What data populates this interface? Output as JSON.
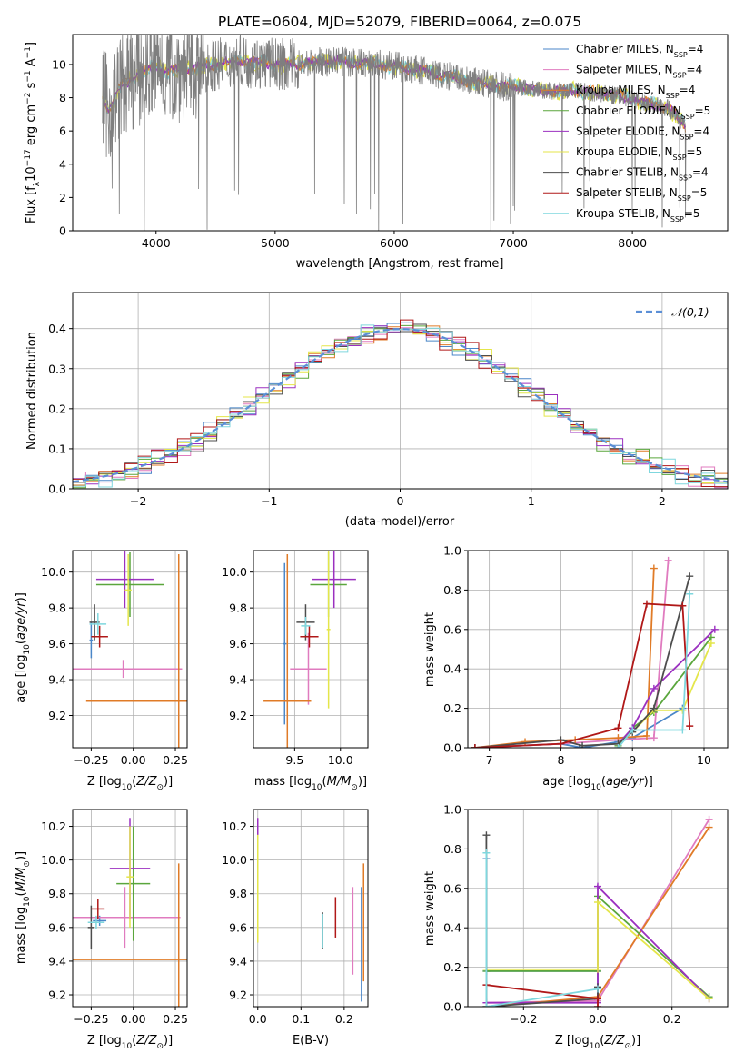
{
  "figure_title": "PLATE=0604, MJD=52079, FIBERID=0064, z=0.075",
  "legend": [
    {
      "name": "Chabrier MILES",
      "nssp": "4",
      "color": "#4a86c8"
    },
    {
      "name": "Salpeter MILES",
      "nssp": "4",
      "color": "#e07bbf"
    },
    {
      "name": "Kroupa MILES",
      "nssp": "4",
      "color": "#e07b27"
    },
    {
      "name": "Chabrier ELODIE",
      "nssp": "5",
      "color": "#5aa63c"
    },
    {
      "name": "Salpeter ELODIE",
      "nssp": "4",
      "color": "#9b30c0"
    },
    {
      "name": "Kroupa ELODIE",
      "nssp": "5",
      "color": "#e4e64a"
    },
    {
      "name": "Chabrier STELIB",
      "nssp": "4",
      "color": "#4d4d4d"
    },
    {
      "name": "Salpeter STELIB",
      "nssp": "5",
      "color": "#b01818"
    },
    {
      "name": "Kroupa STELIB",
      "nssp": "5",
      "color": "#7fd7de"
    }
  ],
  "chart_data": [
    {
      "id": "spectrum",
      "type": "line",
      "title": "PLATE=0604, MJD=52079, FIBERID=0064, z=0.075",
      "xlabel": "wavelength [Angstrom, rest frame]",
      "ylabel": "Flux [f_λ 10^-17 erg cm^-2 s^-1 A^-1]",
      "xlim": [
        3300,
        8800
      ],
      "ylim": [
        0,
        11.8
      ],
      "xticks": [
        4000,
        5000,
        6000,
        7000,
        8000
      ],
      "yticks": [
        0,
        2,
        4,
        6,
        8,
        10
      ],
      "grid": false,
      "legend_position": "top-right",
      "continuum_x": [
        3550,
        3600,
        3650,
        3700,
        3800,
        3900,
        4000,
        4100,
        4200,
        4300,
        4500,
        4700,
        4900,
        5100,
        5300,
        5500,
        5700,
        5900,
        6100,
        6300,
        6500,
        6700,
        6900,
        7100,
        7300,
        7500,
        7700,
        7900,
        8100,
        8300,
        8450
      ],
      "continuum_y": [
        8.2,
        7.2,
        7.9,
        8.6,
        9.2,
        9.6,
        9.9,
        9.6,
        9.7,
        9.8,
        10.0,
        10.2,
        10.1,
        10.0,
        10.1,
        10.2,
        10.1,
        10.0,
        9.8,
        9.5,
        9.2,
        8.9,
        8.7,
        8.6,
        8.4,
        8.4,
        8.3,
        8.1,
        7.7,
        7.4,
        6.3
      ]
    },
    {
      "id": "residuals",
      "type": "area",
      "xlabel": "(data-model)/error",
      "ylabel": "Normed distribution",
      "xlim": [
        -2.5,
        2.5
      ],
      "ylim": [
        0,
        0.49
      ],
      "xticks": [
        -2,
        -1,
        0,
        1,
        2
      ],
      "yticks": [
        0.0,
        0.1,
        0.2,
        0.3,
        0.4
      ],
      "grid": true,
      "legend_position": "top-right",
      "reference_curve": "𝒩(0,1)",
      "reference_color": "#5b8fd6",
      "bin_width": 0.1
    },
    {
      "id": "Z_age",
      "type": "scatter",
      "xlabel": "Z [log10(Z/Z⊙)]",
      "ylabel": "age  [log10(age/yr)]",
      "xlim": [
        -0.36,
        0.32
      ],
      "ylim": [
        9.02,
        10.12
      ],
      "xticks": [
        -0.25,
        0.0,
        0.25
      ],
      "yticks": [
        9.2,
        9.4,
        9.6,
        9.8,
        10.0
      ],
      "grid": true,
      "points": [
        {
          "x": -0.25,
          "y": 9.62,
          "xerr": 0.01,
          "yerr": 0.1,
          "color": "#4a86c8"
        },
        {
          "x": -0.06,
          "y": 9.46,
          "xerr": 0.35,
          "yerr": 0.05,
          "color": "#e07bbf"
        },
        {
          "x": 0.27,
          "y": 9.28,
          "xerr": 0.55,
          "yerr": 0.82,
          "color": "#e07b27"
        },
        {
          "x": -0.02,
          "y": 9.93,
          "xerr": 0.2,
          "yerr": 0.18,
          "color": "#5aa63c"
        },
        {
          "x": -0.05,
          "y": 9.96,
          "xerr": 0.17,
          "yerr": 0.16,
          "color": "#9b30c0"
        },
        {
          "x": -0.03,
          "y": 9.9,
          "xerr": 0.02,
          "yerr": 0.2,
          "color": "#e4e64a"
        },
        {
          "x": -0.23,
          "y": 9.72,
          "xerr": 0.03,
          "yerr": 0.1,
          "color": "#4d4d4d"
        },
        {
          "x": -0.2,
          "y": 9.64,
          "xerr": 0.05,
          "yerr": 0.06,
          "color": "#b01818"
        },
        {
          "x": -0.21,
          "y": 9.71,
          "xerr": 0.05,
          "yerr": 0.06,
          "color": "#7fd7de"
        }
      ]
    },
    {
      "id": "mass_age",
      "type": "scatter",
      "xlabel": "mass [log10(M/M⊙)]",
      "ylabel": "",
      "xlim": [
        9.05,
        10.3
      ],
      "ylim": [
        9.02,
        10.12
      ],
      "xticks": [
        9.5,
        10.0
      ],
      "yticks": [
        9.2,
        9.4,
        9.6,
        9.8,
        10.0
      ],
      "grid": true,
      "points": [
        {
          "x": 9.39,
          "y": 9.6,
          "xerr": 0.02,
          "yerr": 0.45,
          "color": "#4a86c8"
        },
        {
          "x": 9.65,
          "y": 9.46,
          "xerr": 0.2,
          "yerr": 0.2,
          "color": "#e07bbf"
        },
        {
          "x": 9.42,
          "y": 9.28,
          "xerr": 0.26,
          "yerr": 0.82,
          "color": "#e07b27"
        },
        {
          "x": 9.87,
          "y": 9.93,
          "xerr": 0.2,
          "yerr": 0.18,
          "color": "#5aa63c"
        },
        {
          "x": 9.93,
          "y": 9.96,
          "xerr": 0.24,
          "yerr": 0.16,
          "color": "#9b30c0"
        },
        {
          "x": 9.87,
          "y": 9.68,
          "xerr": 0.02,
          "yerr": 0.44,
          "color": "#e4e64a"
        },
        {
          "x": 9.62,
          "y": 9.72,
          "xerr": 0.1,
          "yerr": 0.1,
          "color": "#4d4d4d"
        },
        {
          "x": 9.66,
          "y": 9.64,
          "xerr": 0.1,
          "yerr": 0.06,
          "color": "#b01818"
        },
        {
          "x": 9.62,
          "y": 9.7,
          "xerr": 0.05,
          "yerr": 0.05,
          "color": "#7fd7de"
        }
      ]
    },
    {
      "id": "age_weight",
      "type": "line",
      "xlabel": "age  [log10(age/yr)]",
      "ylabel": "mass weight",
      "xlim": [
        6.7,
        10.33
      ],
      "ylim": [
        0,
        1.0
      ],
      "xticks": [
        7,
        8,
        9,
        10
      ],
      "yticks": [
        0.0,
        0.2,
        0.4,
        0.6,
        0.8,
        1.0
      ],
      "grid": true,
      "series": [
        {
          "color": "#4a86c8",
          "x": [
            6.8,
            8.0,
            8.3,
            8.8,
            9.0,
            9.7
          ],
          "y": [
            0.0,
            0.02,
            0.0,
            0.03,
            0.05,
            0.2
          ]
        },
        {
          "color": "#e07bbf",
          "x": [
            6.8,
            8.0,
            8.8,
            9.3,
            9.5
          ],
          "y": [
            0.0,
            0.02,
            0.04,
            0.05,
            0.95
          ]
        },
        {
          "color": "#e07b27",
          "x": [
            6.8,
            7.5,
            8.2,
            8.8,
            9.2,
            9.3
          ],
          "y": [
            0.0,
            0.03,
            0.04,
            0.05,
            0.06,
            0.91
          ]
        },
        {
          "color": "#5aa63c",
          "x": [
            8.8,
            9.0,
            9.3,
            10.1
          ],
          "y": [
            0.01,
            0.1,
            0.18,
            0.56
          ]
        },
        {
          "color": "#9b30c0",
          "x": [
            8.8,
            9.0,
            9.3,
            10.15
          ],
          "y": [
            0.02,
            0.1,
            0.3,
            0.6
          ]
        },
        {
          "color": "#e4e64a",
          "x": [
            8.8,
            9.0,
            9.3,
            9.7,
            10.1
          ],
          "y": [
            0.02,
            0.08,
            0.19,
            0.19,
            0.53
          ]
        },
        {
          "color": "#4d4d4d",
          "x": [
            6.8,
            8.0,
            8.3,
            8.8,
            9.0,
            9.3,
            9.8
          ],
          "y": [
            0.0,
            0.04,
            0.01,
            0.02,
            0.08,
            0.2,
            0.87
          ]
        },
        {
          "color": "#b01818",
          "x": [
            6.8,
            8.0,
            8.8,
            9.2,
            9.7,
            9.8
          ],
          "y": [
            0.0,
            0.02,
            0.1,
            0.73,
            0.72,
            0.11
          ]
        },
        {
          "color": "#7fd7de",
          "x": [
            8.8,
            9.0,
            9.7,
            9.8
          ],
          "y": [
            0.0,
            0.09,
            0.09,
            0.78
          ]
        }
      ]
    },
    {
      "id": "Z_mass",
      "type": "scatter",
      "xlabel": "Z [log10(Z/Z⊙)]",
      "ylabel": "mass [log10(M/M⊙)]",
      "xlim": [
        -0.36,
        0.32
      ],
      "ylim": [
        9.13,
        10.3
      ],
      "xticks": [
        -0.25,
        0.0,
        0.25
      ],
      "yticks": [
        9.2,
        9.4,
        9.6,
        9.8,
        10.0,
        10.2
      ],
      "grid": true,
      "points": [
        {
          "x": -0.2,
          "y": 9.64,
          "xerr": 0.04,
          "yerr": 0.03,
          "color": "#4a86c8"
        },
        {
          "x": -0.05,
          "y": 9.66,
          "xerr": 0.33,
          "yerr": 0.18,
          "color": "#e07bbf"
        },
        {
          "x": 0.27,
          "y": 9.41,
          "xerr": 0.63,
          "yerr": 0.57,
          "color": "#e07b27"
        },
        {
          "x": 0.0,
          "y": 9.86,
          "xerr": 0.1,
          "yerr": 0.34,
          "color": "#5aa63c"
        },
        {
          "x": -0.02,
          "y": 9.95,
          "xerr": 0.12,
          "yerr": 0.3,
          "color": "#9b30c0"
        },
        {
          "x": -0.02,
          "y": 9.9,
          "xerr": 0.02,
          "yerr": 0.3,
          "color": "#e4e64a"
        },
        {
          "x": -0.25,
          "y": 9.6,
          "xerr": 0.02,
          "yerr": 0.13,
          "color": "#4d4d4d"
        },
        {
          "x": -0.21,
          "y": 9.71,
          "xerr": 0.04,
          "yerr": 0.06,
          "color": "#b01818"
        },
        {
          "x": -0.22,
          "y": 9.63,
          "xerr": 0.05,
          "yerr": 0.04,
          "color": "#7fd7de"
        }
      ]
    },
    {
      "id": "ebv_mass",
      "type": "scatter",
      "xlabel": "E(B-V)",
      "ylabel": "",
      "xlim": [
        -0.01,
        0.255
      ],
      "ylim": [
        9.13,
        10.3
      ],
      "xticks": [
        0.0,
        0.1,
        0.2
      ],
      "yticks": [
        9.2,
        9.4,
        9.6,
        9.8,
        10.0,
        10.2
      ],
      "grid": true,
      "points": [
        {
          "x": 0.24,
          "y": 9.5,
          "yerr": 0.34,
          "color": "#4a86c8"
        },
        {
          "x": 0.22,
          "y": 9.58,
          "yerr": 0.26,
          "color": "#e07bbf"
        },
        {
          "x": 0.245,
          "y": 9.63,
          "yerr": 0.35,
          "color": "#e07b27"
        },
        {
          "x": 0.0,
          "y": 9.85,
          "yerr": 0.34,
          "color": "#5aa63c"
        },
        {
          "x": 0.0,
          "y": 10.05,
          "yerr": 0.2,
          "color": "#9b30c0"
        },
        {
          "x": 0.0,
          "y": 9.83,
          "yerr": 0.32,
          "color": "#e4e64a"
        },
        {
          "x": 0.15,
          "y": 9.58,
          "yerr": 0.11,
          "color": "#4d4d4d"
        },
        {
          "x": 0.18,
          "y": 9.66,
          "yerr": 0.12,
          "color": "#b01818"
        },
        {
          "x": 0.15,
          "y": 9.58,
          "yerr": 0.1,
          "color": "#7fd7de"
        }
      ]
    },
    {
      "id": "Z_weight",
      "type": "line",
      "xlabel": "Z [log10(Z/Z⊙)]",
      "ylabel": "mass weight",
      "xlim": [
        -0.35,
        0.35
      ],
      "ylim": [
        0,
        1.0
      ],
      "xticks": [
        -0.2,
        0.0,
        0.2
      ],
      "yticks": [
        0.0,
        0.2,
        0.4,
        0.6,
        0.8,
        1.0
      ],
      "grid": true,
      "series": [
        {
          "color": "#4a86c8",
          "x": [
            -0.3,
            -0.3,
            0.0,
            0.0
          ],
          "y": [
            0.75,
            0.18,
            0.18,
            0.03
          ]
        },
        {
          "color": "#e07bbf",
          "x": [
            -0.3,
            0.0,
            0.3
          ],
          "y": [
            0.02,
            0.03,
            0.95
          ]
        },
        {
          "color": "#e07b27",
          "x": [
            -0.3,
            0.0,
            0.3
          ],
          "y": [
            0.0,
            0.05,
            0.91
          ]
        },
        {
          "color": "#5aa63c",
          "x": [
            -0.3,
            0.0,
            0.0,
            0.3
          ],
          "y": [
            0.18,
            0.18,
            0.56,
            0.05
          ]
        },
        {
          "color": "#9b30c0",
          "x": [
            -0.3,
            0.0,
            0.0,
            0.3
          ],
          "y": [
            0.02,
            0.02,
            0.61,
            0.04
          ]
        },
        {
          "color": "#e4e64a",
          "x": [
            -0.3,
            0.0,
            0.0,
            0.3
          ],
          "y": [
            0.19,
            0.19,
            0.53,
            0.04
          ]
        },
        {
          "color": "#4d4d4d",
          "x": [
            -0.3,
            -0.3,
            0.0,
            0.0
          ],
          "y": [
            0.87,
            0.0,
            0.04,
            0.1
          ]
        },
        {
          "color": "#b01818",
          "x": [
            -0.3,
            0.0,
            0.0
          ],
          "y": [
            0.11,
            0.04,
            0.0
          ]
        },
        {
          "color": "#7fd7de",
          "x": [
            -0.3,
            -0.3,
            0.0
          ],
          "y": [
            0.78,
            0.0,
            0.09
          ]
        }
      ]
    }
  ]
}
